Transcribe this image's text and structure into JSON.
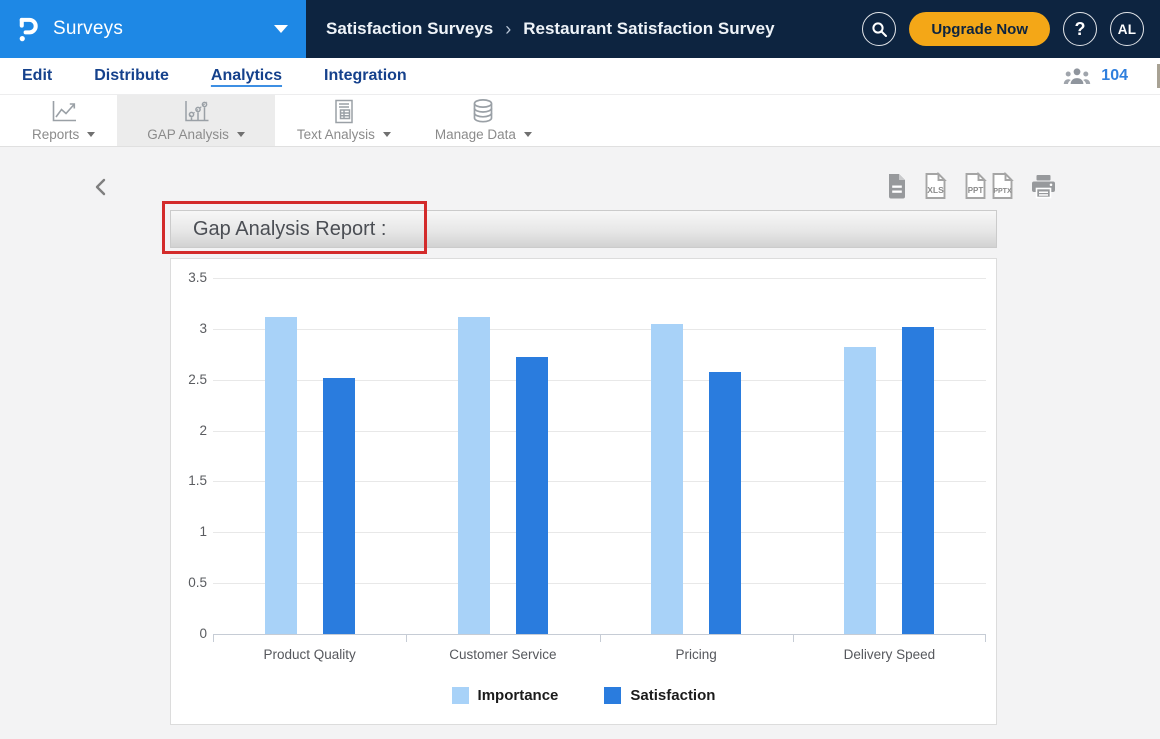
{
  "header": {
    "product": "Surveys",
    "breadcrumb": {
      "parent": "Satisfaction Surveys",
      "separator": "›",
      "current": "Restaurant Satisfaction Survey"
    },
    "upgrade_label": "Upgrade Now",
    "help_label": "?",
    "avatar_initials": "AL",
    "colors": {
      "brand_blue": "#1E88E5",
      "navy": "#0D2440",
      "amber": "#F4A717"
    }
  },
  "nav": {
    "items": [
      {
        "label": "Edit",
        "active": false
      },
      {
        "label": "Distribute",
        "active": false
      },
      {
        "label": "Analytics",
        "active": true
      },
      {
        "label": "Integration",
        "active": false
      }
    ],
    "respondents": {
      "icon": "people-icon",
      "count": "104"
    }
  },
  "toolbar": {
    "items": [
      {
        "label": "Reports",
        "icon": "line-chart-icon",
        "selected": false
      },
      {
        "label": "GAP Analysis",
        "icon": "gap-scatter-icon",
        "selected": true
      },
      {
        "label": "Text Analysis",
        "icon": "text-analysis-icon",
        "selected": false
      },
      {
        "label": "Manage Data",
        "icon": "database-icon",
        "selected": false
      }
    ]
  },
  "report": {
    "title": "Gap Analysis Report :",
    "highlight_color": "#D32B2B",
    "export": {
      "xls_label": "XLS",
      "ppt_label": "PPT",
      "pptx_label": "PPTX"
    }
  },
  "chart_data": {
    "type": "bar",
    "title": "Gap Analysis Report",
    "categories": [
      "Product Quality",
      "Customer Service",
      "Pricing",
      "Delivery Speed"
    ],
    "series": [
      {
        "name": "Importance",
        "color": "#A8D2F8",
        "values": [
          3.12,
          3.12,
          3.05,
          2.82
        ]
      },
      {
        "name": "Satisfaction",
        "color": "#2A7CDE",
        "values": [
          2.52,
          2.72,
          2.58,
          3.02
        ]
      }
    ],
    "xlabel": "",
    "ylabel": "",
    "ylim": [
      0,
      3.5
    ],
    "ytick_step": 0.5,
    "grid": true,
    "legend_position": "bottom"
  }
}
